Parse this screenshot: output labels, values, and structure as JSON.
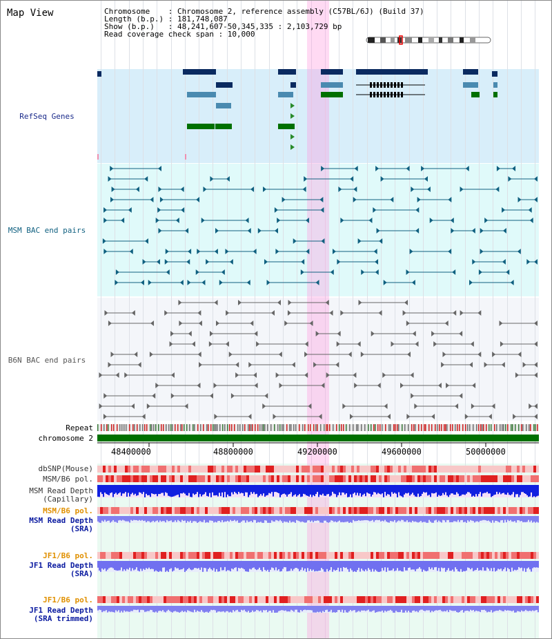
{
  "title": "Map View",
  "info": {
    "line1": "Chromosome    : Chromosome 2, reference assembly (C57BL/6J) (Build 37)",
    "line2": "Length (b.p.) : 181,748,087",
    "line3": "Show (b.p.)   : 48,241,607-50,345,335 : 2,103,729 bp",
    "line4": "Read coverage check span : 10,000"
  },
  "tracks": {
    "refseq": "RefSeq Genes",
    "msm_bac": "MSM BAC end pairs",
    "b6n_bac": "B6N BAC end pairs",
    "repeat": "Repeat",
    "chromosome": "chromosome 2",
    "dbsnp": "dbSNP(Mouse)",
    "msm_b6_pol": "MSM/B6 pol.",
    "msm_depth_cap_1": "MSM Read Depth",
    "msm_depth_cap_2": "(Capillary)",
    "msm_b6_pol_2": "MSM/B6 pol.",
    "msm_depth_sra_1": "MSM Read Depth",
    "msm_depth_sra_2": "(SRA)",
    "jf1_b6_pol": "JF1/B6 pol.",
    "jf1_depth_sra_1": "JF1 Read Depth",
    "jf1_depth_sra_2": "(SRA)",
    "jf1_b6_pol_2": "JF1/B6 pol.",
    "jf1_depth_trim_1": "JF1 Read Depth",
    "jf1_depth_trim_2": "(SRA trimmed)"
  },
  "axis": {
    "ticks": [
      "48400000",
      "48800000",
      "49200000",
      "49600000",
      "50000000"
    ]
  },
  "colors": {
    "refseq_bg": "#d8eefa",
    "bac_bg": "#e0fafa",
    "dark_navy": "#0a2a60",
    "steel_blue": "#4a8ab0",
    "green": "#007000",
    "teal": "#106080",
    "gray": "#666666",
    "highlight": "#ff96dc"
  }
}
